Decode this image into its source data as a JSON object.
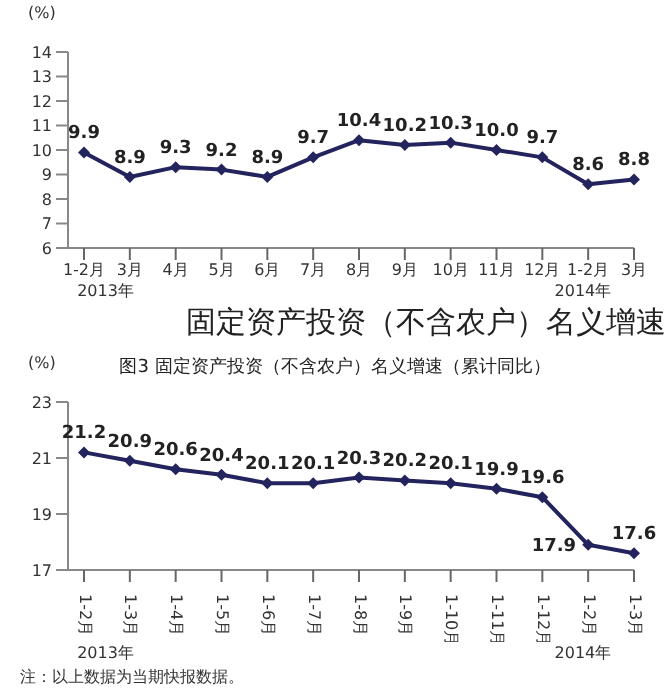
{
  "chart_data": [
    {
      "type": "line",
      "ylabel": "(%)",
      "categories": [
        "1-2月",
        "3月",
        "4月",
        "5月",
        "6月",
        "7月",
        "8月",
        "9月",
        "10月",
        "11月",
        "12月",
        "1-2月",
        "3月"
      ],
      "series": [
        {
          "color": "#23235e",
          "values": [
            9.9,
            8.9,
            9.3,
            9.2,
            8.9,
            9.7,
            10.4,
            10.2,
            10.3,
            10.0,
            9.7,
            8.6,
            8.8
          ]
        }
      ],
      "value_labels": [
        "9.9",
        "8.9",
        "9.3",
        "9.2",
        "8.9",
        "9.7",
        "10.4",
        "10.2",
        "10.3",
        "10.0",
        "9.7",
        "8.6",
        "8.8"
      ],
      "ylim": [
        6,
        14
      ],
      "yticks": [
        6,
        7,
        8,
        9,
        10,
        11,
        12,
        13,
        14
      ],
      "marker": "diamond",
      "line_style": "solid",
      "annotations": [
        "2013年",
        "2014年",
        "固定资产投资（不含农户）名义增速"
      ]
    },
    {
      "type": "line",
      "title": "图3 固定资产投资（不含农户）名义增速（累计同比）",
      "ylabel": "(%)",
      "categories": [
        "1-2月",
        "1-3月",
        "1-4月",
        "1-5月",
        "1-6月",
        "1-7月",
        "1-8月",
        "1-9月",
        "1-10月",
        "1-11月",
        "1-12月",
        "1-2月",
        "1-3月"
      ],
      "series": [
        {
          "color": "#23235e",
          "values": [
            21.2,
            20.9,
            20.6,
            20.4,
            20.1,
            20.1,
            20.3,
            20.2,
            20.1,
            19.9,
            19.6,
            17.9,
            17.6
          ]
        }
      ],
      "value_labels": [
        "21.2",
        "20.9",
        "20.6",
        "20.4",
        "20.1",
        "20.1",
        "20.3",
        "20.2",
        "20.1",
        "19.9",
        "19.6",
        "17.9",
        "17.6"
      ],
      "ylim": [
        17,
        23
      ],
      "yticks": [
        17,
        19,
        21,
        23
      ],
      "marker": "diamond",
      "line_style": "solid",
      "annotations": [
        "2013年",
        "2014年",
        "注：以上数据为当期快报数据。"
      ]
    }
  ]
}
